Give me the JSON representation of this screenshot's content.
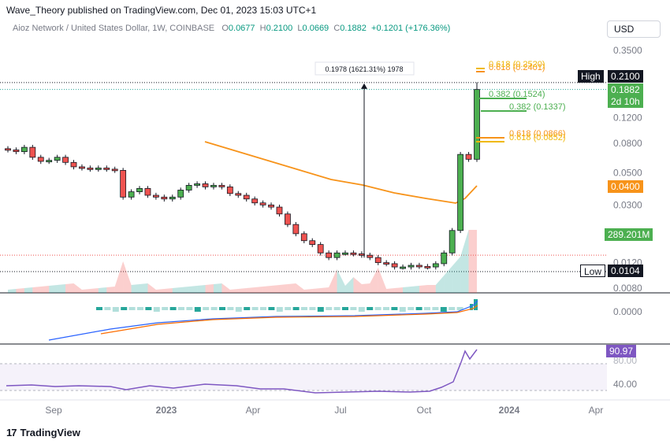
{
  "header": {
    "attribution": "Wave_Theory published on TradingView.com, Dec 01, 2023 15:03 UTC+1"
  },
  "symbol": {
    "name": "Aioz Network / United States Dollar, 1W, COINBASE",
    "o_label": "O",
    "o_value": "0.0677",
    "h_label": "H",
    "h_value": "0.2100",
    "l_label": "L",
    "l_value": "0.0669",
    "c_label": "C",
    "c_value": "0.1882",
    "change": "+0.1201 (+176.36%)"
  },
  "currency_button": "USD",
  "footer": {
    "brand": "TradingView",
    "logo_mark": "17"
  },
  "colors": {
    "up": "#26a69a",
    "up_body": "#4caf50",
    "down": "#ef5350",
    "ema": "#f7931a",
    "fib_green": "#4caf50",
    "fib_yellow": "#f0b90b",
    "rsi": "#7e57c2",
    "macd": "#2962ff"
  },
  "tags": {
    "high_label": "High",
    "high_value": "0.2100",
    "price_value": "0.1882",
    "countdown": "2d 10h",
    "ema_value": "0.0400",
    "volume_value": "289.201M",
    "low_label": "Low",
    "low_value": "0.0104",
    "rsi_value": "90.97"
  },
  "chart_data": {
    "type": "candlestick",
    "symbol": "Aioz Network / United States Dollar",
    "timeframe": "1W",
    "exchange": "COINBASE",
    "y_scale": "log",
    "y_ticks": [
      "0.3500",
      "0.1200",
      "0.0800",
      "0.0500",
      "0.0300",
      "0.0120",
      "0.0080"
    ],
    "x_ticks": [
      "Sep",
      "2023",
      "Apr",
      "Jul",
      "Oct",
      "2024",
      "Apr"
    ],
    "macd_ticks": [
      "0.0000"
    ],
    "rsi_ticks": [
      "80.00",
      "40.00"
    ],
    "candles_close": [
      0.072,
      0.07,
      0.075,
      0.064,
      0.06,
      0.061,
      0.064,
      0.059,
      0.055,
      0.054,
      0.053,
      0.054,
      0.053,
      0.052,
      0.034,
      0.037,
      0.039,
      0.035,
      0.034,
      0.033,
      0.034,
      0.038,
      0.041,
      0.042,
      0.04,
      0.041,
      0.04,
      0.036,
      0.035,
      0.033,
      0.031,
      0.03,
      0.029,
      0.026,
      0.022,
      0.019,
      0.017,
      0.016,
      0.014,
      0.013,
      0.014,
      0.014,
      0.0138,
      0.0135,
      0.013,
      0.012,
      0.0118,
      0.0112,
      0.0112,
      0.0115,
      0.0113,
      0.0112,
      0.0118,
      0.014,
      0.02,
      0.067,
      0.062,
      0.188
    ],
    "fib_levels": [
      {
        "label": "0.382 (0.1524)",
        "value": 0.1524
      },
      {
        "label": "0.382 (0.1337)",
        "value": 0.1337
      },
      {
        "label": "0.618 (0.0866)",
        "value": 0.0866
      },
      {
        "label": "0.618 (0.0852)",
        "value": 0.0852
      },
      {
        "label": "0.618 (0.2401)",
        "value": 0.2401
      },
      {
        "label": "0.618 (0.2520)",
        "value": 0.252
      }
    ],
    "measure_label": "0.1978 (1621.31%) 1978",
    "high": 0.21,
    "low": 0.0104,
    "ema_last": 0.04,
    "rsi_last": 90.97
  }
}
